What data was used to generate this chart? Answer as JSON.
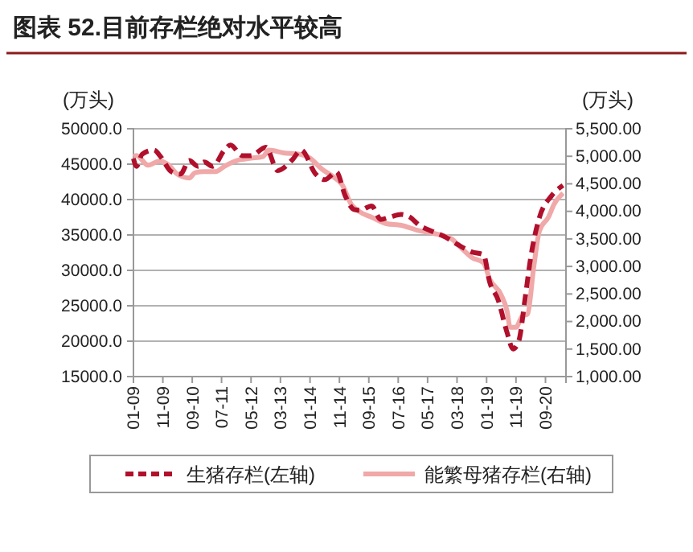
{
  "chart_data": {
    "type": "line",
    "title": "图表 52.目前存栏绝对水平较高",
    "ylabel": "(万头)",
    "y2label": "(万头)",
    "xlim": [
      "2009-01",
      "2021-04"
    ],
    "xticks": [
      {
        "value": "2009-01",
        "label": "01-09"
      },
      {
        "value": "2009-11",
        "label": "11-09"
      },
      {
        "value": "2010-09",
        "label": "09-10"
      },
      {
        "value": "2011-07",
        "label": "07-11"
      },
      {
        "value": "2012-05",
        "label": "05-12"
      },
      {
        "value": "2013-03",
        "label": "03-13"
      },
      {
        "value": "2014-01",
        "label": "01-14"
      },
      {
        "value": "2014-11",
        "label": "11-14"
      },
      {
        "value": "2015-09",
        "label": "09-15"
      },
      {
        "value": "2016-07",
        "label": "07-16"
      },
      {
        "value": "2017-05",
        "label": "05-17"
      },
      {
        "value": "2018-03",
        "label": "03-18"
      },
      {
        "value": "2019-01",
        "label": "01-19"
      },
      {
        "value": "2019-11",
        "label": "11-19"
      },
      {
        "value": "2020-09",
        "label": "09-20"
      }
    ],
    "ylim": [
      15000,
      50000
    ],
    "yticks": [
      {
        "value": 15000,
        "label": "15000.0"
      },
      {
        "value": 20000,
        "label": "20000.0"
      },
      {
        "value": 25000,
        "label": "25000.0"
      },
      {
        "value": 30000,
        "label": "30000.0"
      },
      {
        "value": 35000,
        "label": "35000.0"
      },
      {
        "value": 40000,
        "label": "40000.0"
      },
      {
        "value": 45000,
        "label": "45000.0"
      },
      {
        "value": 50000,
        "label": "50000.0"
      }
    ],
    "y2lim": [
      1000,
      5500
    ],
    "y2ticks": [
      {
        "value": 1000,
        "label": "1,000.00"
      },
      {
        "value": 1500,
        "label": "1,500.00"
      },
      {
        "value": 2000,
        "label": "2,000.00"
      },
      {
        "value": 2500,
        "label": "2,500.00"
      },
      {
        "value": 3000,
        "label": "3,000.00"
      },
      {
        "value": 3500,
        "label": "3,500.00"
      },
      {
        "value": 4000,
        "label": "4,000.00"
      },
      {
        "value": 4500,
        "label": "4,500.00"
      },
      {
        "value": 5000,
        "label": "5,000.00"
      },
      {
        "value": 5500,
        "label": "5,500.00"
      }
    ],
    "grid": "y",
    "legend": "bottom",
    "series": [
      {
        "name": "生猪存栏(左轴)",
        "color": "#b0102c",
        "line_style": "dashed",
        "x": [
          "2009-01",
          "2009-02",
          "2009-04",
          "2009-08",
          "2009-10",
          "2010-02",
          "2010-05",
          "2010-08",
          "2010-11",
          "2011-01",
          "2011-04",
          "2011-08",
          "2011-10",
          "2012-02",
          "2012-05",
          "2012-10",
          "2013-02",
          "2013-07",
          "2013-10",
          "2014-03",
          "2014-06",
          "2014-10",
          "2015-01",
          "2015-04",
          "2015-06",
          "2015-10",
          "2016-01",
          "2016-04",
          "2016-08",
          "2016-11",
          "2017-02",
          "2017-06",
          "2017-11",
          "2018-03",
          "2018-08",
          "2018-12",
          "2019-02",
          "2019-05",
          "2019-08",
          "2019-10",
          "2019-12",
          "2020-02",
          "2020-04",
          "2020-07",
          "2020-11",
          "2021-03"
        ],
        "values": [
          45800,
          44700,
          46400,
          47000,
          46200,
          43900,
          43600,
          45500,
          44700,
          45300,
          44700,
          47000,
          47700,
          46200,
          46200,
          47400,
          44100,
          45600,
          47000,
          43600,
          42800,
          43900,
          40500,
          38600,
          38500,
          39100,
          37200,
          37500,
          37900,
          37500,
          36400,
          35600,
          34700,
          33700,
          32600,
          32200,
          28400,
          25800,
          21200,
          18900,
          20100,
          25800,
          31800,
          37500,
          40500,
          42000
        ]
      },
      {
        "name": "能繁母猪存栏(右轴)",
        "color": "#f0a8a8",
        "line_style": "solid",
        "axis": "y2",
        "x": [
          "2009-01",
          "2009-02",
          "2009-06",
          "2009-10",
          "2010-01",
          "2010-04",
          "2010-08",
          "2010-10",
          "2011-01",
          "2011-05",
          "2011-08",
          "2012-01",
          "2012-05",
          "2012-09",
          "2012-11",
          "2013-04",
          "2013-10",
          "2014-01",
          "2014-05",
          "2014-09",
          "2014-12",
          "2015-03",
          "2015-06",
          "2015-10",
          "2016-03",
          "2016-08",
          "2017-02",
          "2017-07",
          "2018-01",
          "2018-04",
          "2018-08",
          "2018-12",
          "2019-02",
          "2019-06",
          "2019-08",
          "2019-09",
          "2019-11",
          "2020-01",
          "2020-03",
          "2020-05",
          "2020-07",
          "2020-10",
          "2020-12",
          "2021-03"
        ],
        "values": [
          4995,
          5014,
          4839,
          4917,
          4839,
          4674,
          4606,
          4703,
          4722,
          4722,
          4820,
          4936,
          4965,
          4995,
          5111,
          5063,
          5033,
          4965,
          4771,
          4625,
          4480,
          4136,
          3990,
          3893,
          3776,
          3747,
          3649,
          3601,
          3503,
          3357,
          3162,
          3065,
          2773,
          2481,
          2189,
          1896,
          1896,
          2091,
          2140,
          2968,
          3649,
          3893,
          4136,
          4330
        ]
      }
    ]
  }
}
